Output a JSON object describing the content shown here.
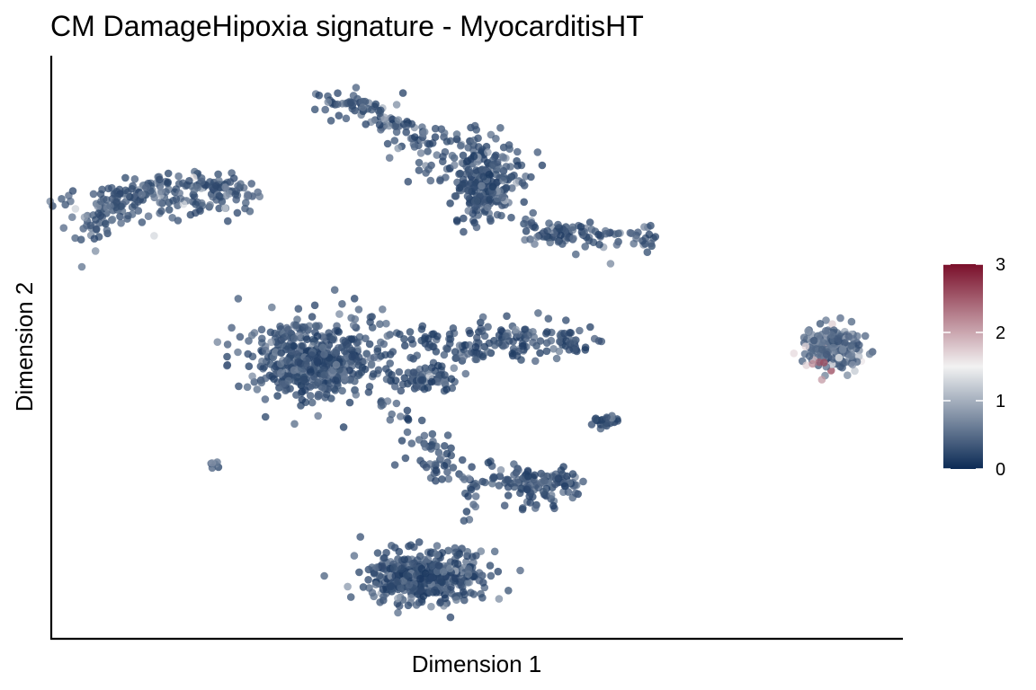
{
  "chart_data": {
    "type": "scatter",
    "title": "CM DamageHipoxia signature - MyocarditisHT",
    "xlabel": "Dimension 1",
    "ylabel": "Dimension 2",
    "xlim": [
      0,
      100
    ],
    "ylim": [
      0,
      100
    ],
    "x_ticks_shown": false,
    "y_ticks_shown": false,
    "grid": false,
    "point_opacity": 0.75,
    "colorbar": {
      "range": [
        0,
        3
      ],
      "ticks": [
        "0",
        "1",
        "2",
        "3"
      ],
      "colors": [
        "#0b2a55",
        "#f2f2f2",
        "#7a0f2a"
      ],
      "placement": "right"
    },
    "clusters": [
      {
        "cx": 12.3,
        "cy": 74.5,
        "sx": 10.5,
        "sy": 3.2,
        "n": 260,
        "value_mean": 0.55,
        "path": [
          [
            4.8,
            68.8
          ],
          [
            6.3,
            74.3
          ],
          [
            10.6,
            77.1
          ],
          [
            15.6,
            77.8
          ],
          [
            20.2,
            77.8
          ],
          [
            23.8,
            75.0
          ]
        ],
        "label": "cluster-left-arc"
      },
      {
        "cx": 47.8,
        "cy": 83.0,
        "sx": 5.5,
        "sy": 4.5,
        "n": 160,
        "value_mean": 0.4,
        "path": [
          [
            32.1,
            92.2
          ],
          [
            36.8,
            91.7
          ],
          [
            40.4,
            88.3
          ],
          [
            44.7,
            84.2
          ]
        ],
        "label": "cluster-top-ridge"
      },
      {
        "cx": 51.0,
        "cy": 77.8,
        "sx": 3.8,
        "sy": 6.0,
        "n": 220,
        "value_mean": 0.35,
        "label": "cluster-top-body"
      },
      {
        "cx": 60.1,
        "cy": 69.4,
        "sx": 4.0,
        "sy": 1.8,
        "n": 110,
        "value_mean": 0.4,
        "path": [
          [
            55.5,
            71.3
          ],
          [
            59.0,
            69.3
          ],
          [
            63.8,
            69.3
          ],
          [
            68.1,
            68.8
          ],
          [
            72.3,
            69.3
          ]
        ],
        "label": "cluster-top-tail"
      },
      {
        "cx": 31.2,
        "cy": 48.0,
        "sx": 7.5,
        "sy": 6.5,
        "n": 520,
        "value_mean": 0.35,
        "label": "cluster-center-left-body"
      },
      {
        "cx": 50.0,
        "cy": 49.8,
        "sx": 8.0,
        "sy": 1.8,
        "n": 170,
        "value_mean": 0.3,
        "path": [
          [
            41.1,
            51.7
          ],
          [
            45.4,
            52.3
          ],
          [
            50.0,
            51.9
          ],
          [
            54.6,
            51.7
          ],
          [
            59.0,
            51.7
          ],
          [
            63.8,
            51.0
          ]
        ],
        "label": "cluster-center-band"
      },
      {
        "cx": 44.1,
        "cy": 44.9,
        "sx": 3.5,
        "sy": 1.8,
        "n": 60,
        "value_mean": 0.3,
        "label": "cluster-center-arm"
      },
      {
        "cx": 44.6,
        "cy": 30.6,
        "sx": 3.0,
        "sy": 5.0,
        "n": 70,
        "value_mean": 0.3,
        "path": [
          [
            39.8,
            41.4
          ],
          [
            42.0,
            36.4
          ],
          [
            45.9,
            31.2
          ],
          [
            48.5,
            25.9
          ],
          [
            50.5,
            21.5
          ]
        ],
        "label": "cluster-bridge"
      },
      {
        "cx": 56.1,
        "cy": 26.9,
        "sx": 4.5,
        "sy": 2.0,
        "n": 130,
        "value_mean": 0.35,
        "path": [
          [
            49.0,
            26.9
          ],
          [
            53.1,
            28.2
          ],
          [
            57.6,
            28.2
          ],
          [
            61.5,
            26.9
          ],
          [
            58.7,
            24.5
          ],
          [
            54.6,
            22.9
          ]
        ],
        "label": "cluster-lower-right-loop"
      },
      {
        "cx": 44.1,
        "cy": 10.7,
        "sx": 7.0,
        "sy": 4.0,
        "n": 420,
        "value_mean": 0.3,
        "label": "cluster-bottom-body"
      },
      {
        "cx": 65.1,
        "cy": 37.5,
        "sx": 1.8,
        "sy": 1.0,
        "n": 28,
        "value_mean": 0.3,
        "label": "cluster-small-island"
      },
      {
        "cx": 18.9,
        "cy": 30.0,
        "sx": 0.8,
        "sy": 0.6,
        "n": 6,
        "value_mean": 0.4,
        "label": "cluster-tiny-left"
      },
      {
        "cx": 91.7,
        "cy": 50.0,
        "sx": 2.8,
        "sy": 3.3,
        "n": 210,
        "value_mean": 0.9,
        "hot_spot": [
          89.8,
          46.0
        ],
        "label": "cluster-right-island"
      }
    ]
  }
}
